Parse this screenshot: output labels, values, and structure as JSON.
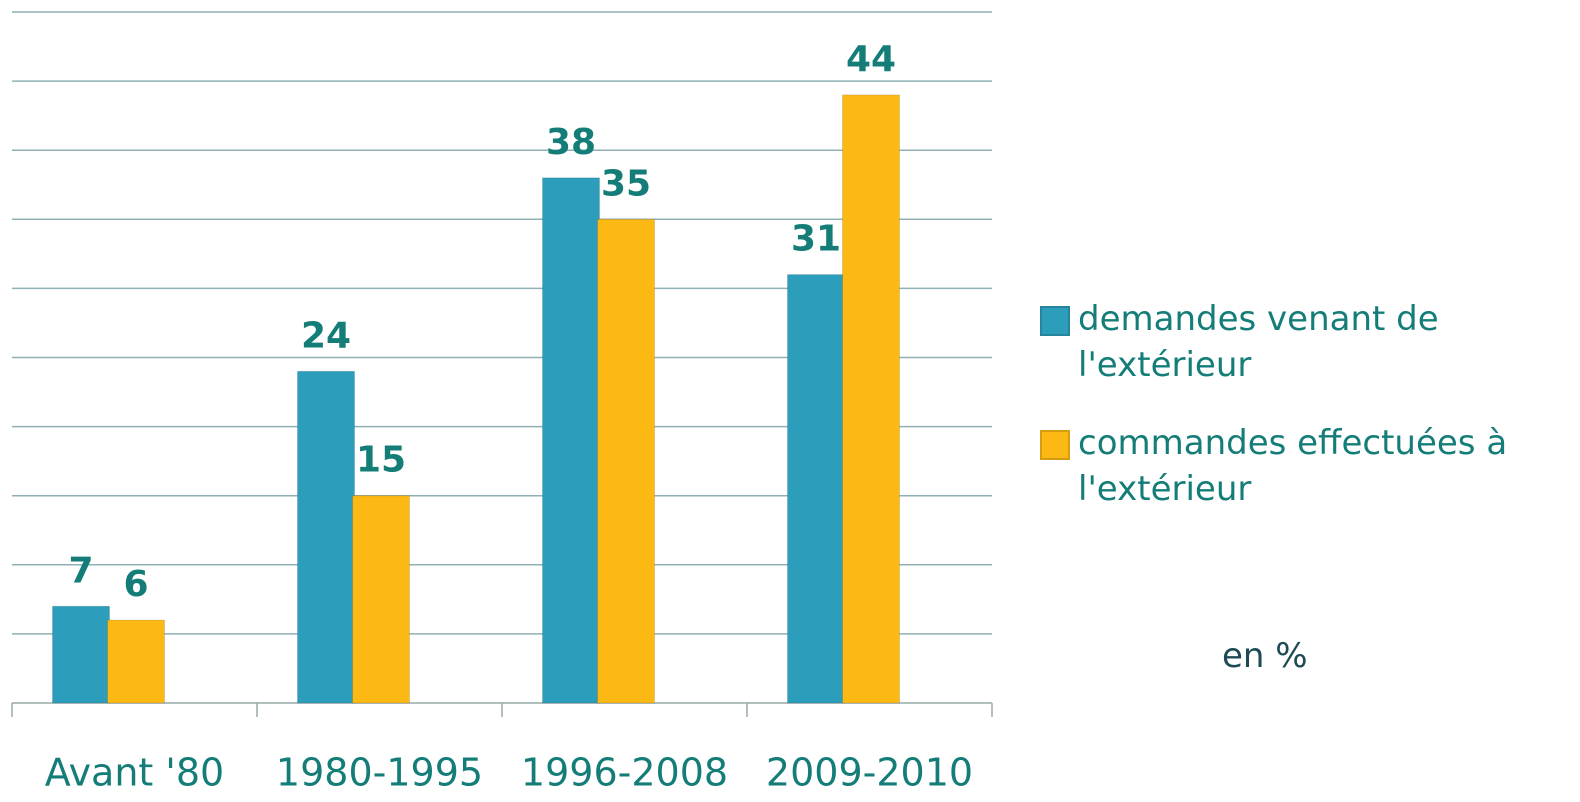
{
  "chart_data": {
    "type": "bar",
    "annotation": "en %",
    "categories": [
      "Avant '80",
      "1980-1995",
      "1996-2008",
      "2009-2010"
    ],
    "series": [
      {
        "name": "demandes venant de l'extérieur",
        "color": "#2c9dbb",
        "values": [
          7,
          24,
          38,
          31
        ]
      },
      {
        "name": "commandes effectuées à l'extérieur",
        "color": "#fdb913",
        "values": [
          6,
          15,
          35,
          44
        ]
      }
    ],
    "ylim": [
      0,
      50
    ],
    "yticks": [
      0,
      5,
      10,
      15,
      20,
      25,
      30,
      35,
      40,
      45,
      50
    ],
    "grid": true,
    "legend": "right"
  }
}
